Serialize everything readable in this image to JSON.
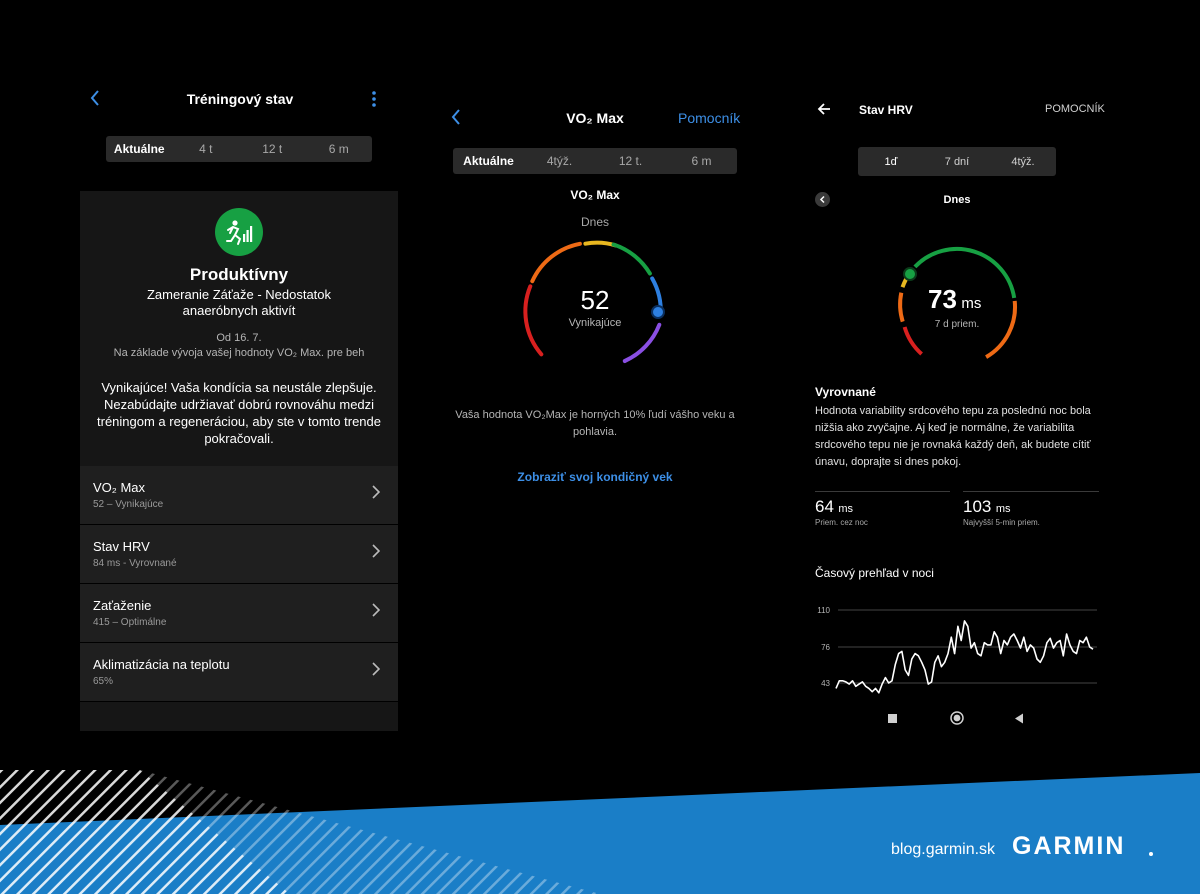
{
  "panel1": {
    "title": "Tréningový stav",
    "tabs": [
      "Aktuálne",
      "4 t",
      "12 t",
      "6 m"
    ],
    "status_title": "Produktívny",
    "status_sub": "Zameranie Záťaže - Nedostatok anaeróbnych aktivít",
    "since": "Od 16. 7.",
    "basis": "Na základe vývoja vašej hodnoty VO₂ Max. pre beh",
    "description": "Vynikajúce! Vaša kondícia sa neustále zlepšuje. Nezabúdajte udržiavať dobrú rovnováhu medzi tréningom a regeneráciou, aby ste v tomto trende pokračovali.",
    "items": [
      {
        "title": "VO₂ Max",
        "sub": "52 – Vynikajúce"
      },
      {
        "title": "Stav HRV",
        "sub": "84 ms - Vyrovnané"
      },
      {
        "title": "Zaťaženie",
        "sub": "415 – Optimálne"
      },
      {
        "title": "Aklimatizácia na teplotu",
        "sub": "65%"
      }
    ]
  },
  "panel2": {
    "title": "VO₂ Max",
    "help": "Pomocník",
    "tabs": [
      "Aktuálne",
      "4týž.",
      "12 t.",
      "6 m"
    ],
    "section_title": "VO₂ Max",
    "day_label": "Dnes",
    "value": "52",
    "rating": "Vynikajúce",
    "description": "Vaša hodnota VO₂Max je horných 10% ľudí vášho veku a pohlavia.",
    "link": "Zobraziť svoj kondičný vek"
  },
  "panel3": {
    "title": "Stav HRV",
    "help": "POMOCNÍK",
    "tabs": [
      "1ď",
      "7 dní",
      "4týž."
    ],
    "day_label": "Dnes",
    "value": "73",
    "unit": "ms",
    "avg_label": "7 d priem.",
    "status": "Vyrovnané",
    "description": "Hodnota variability srdcového tepu za poslednú noc bola nižšia ako zvyčajne. Aj keď je normálne, že variabilita srdcového tepu nie je rovnaká každý deň, ak budete cítiť únavu, doprajte si dnes pokoj.",
    "stat1_value": "64",
    "stat1_unit": "ms",
    "stat1_label": "Priem. cez noc",
    "stat2_value": "103",
    "stat2_unit": "ms",
    "stat2_label": "Najvyšší 5-min priem.",
    "chart_title": "Časový prehľad v noci",
    "ticks": [
      "110",
      "76",
      "43"
    ]
  },
  "chart_data": {
    "type": "line",
    "title": "Časový prehľad v noci",
    "xlabel": "",
    "ylabel": "",
    "yticks": [
      110,
      76,
      43
    ],
    "ylim": [
      30,
      110
    ],
    "grid": true,
    "series": [
      {
        "values": [
          38,
          45,
          45,
          44,
          42,
          45,
          40,
          42,
          44,
          40,
          38,
          35,
          38,
          34,
          42,
          48,
          43,
          45,
          60,
          70,
          72,
          55,
          50,
          65,
          70,
          68,
          62,
          55,
          42,
          44,
          62,
          68,
          58,
          62,
          70,
          85,
          70,
          95,
          82,
          100,
          95,
          75,
          80,
          70,
          68,
          80,
          78,
          78,
          90,
          85,
          70,
          82,
          78,
          85,
          88,
          82,
          75,
          85,
          72,
          78,
          75,
          65,
          62,
          68,
          80,
          84,
          75,
          80,
          82,
          68,
          88,
          78,
          72,
          70,
          82,
          80,
          85,
          76,
          74
        ]
      }
    ]
  },
  "footer": {
    "blog": "blog.garmin.sk",
    "brand": "GARMIN"
  },
  "colors": {
    "accent": "#3d8fe6",
    "badge_green": "#17a043",
    "footer_blue": "#1a7ec7"
  }
}
